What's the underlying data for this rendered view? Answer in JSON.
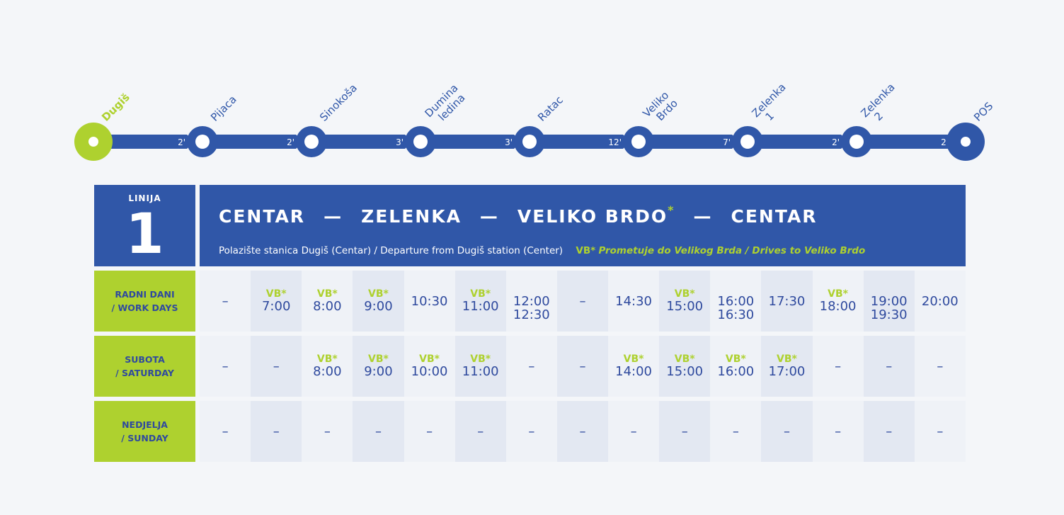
{
  "stops": [
    {
      "name": "Dugiš",
      "first": true
    },
    {
      "name": "Pijaca"
    },
    {
      "name": "Sinokoša"
    },
    {
      "name": "Dumina ledina"
    },
    {
      "name": "Ratac"
    },
    {
      "name": "Veliko Brdo"
    },
    {
      "name": "Zelenka 1"
    },
    {
      "name": "Zelenka 2"
    },
    {
      "name": "POS"
    }
  ],
  "segment_times": [
    "2'",
    "2'",
    "3'",
    "3'",
    "12'",
    "7'",
    "2'",
    "2'"
  ],
  "colors": {
    "blue": "#3057a8",
    "green": "#aed12f",
    "background": "#f4f6f9",
    "cell_light": "#eff2f7",
    "cell_dark": "#e3e8f2"
  },
  "line": {
    "label": "LINIJA",
    "number": "1"
  },
  "route": {
    "part1": "CENTAR",
    "part2": "ZELENKA",
    "part3": "VELIKO BRDO",
    "asterisk": "*",
    "part4": "CENTAR",
    "dash": "—",
    "departure": "Polazište stanica Dugiš (Centar) / Departure from Dugiš station (Center)",
    "vb_mark": "VB*",
    "vb_note": "Prometuje do Velikog Brda / Drives to Veliko Brdo"
  },
  "rows": [
    {
      "label1": "RADNI DANI",
      "label2": "/ WORK DAYS",
      "cells": [
        {
          "t": "–"
        },
        {
          "vb": "VB*",
          "t": "7:00"
        },
        {
          "vb": "VB*",
          "t": "8:00"
        },
        {
          "vb": "VB*",
          "t": "9:00"
        },
        {
          "t": "10:30"
        },
        {
          "vb": "VB*",
          "t": "11:00"
        },
        {
          "t": "12:00",
          "t2": "12:30"
        },
        {
          "t": "–"
        },
        {
          "t": "14:30"
        },
        {
          "vb": "VB*",
          "t": "15:00"
        },
        {
          "t": "16:00",
          "t2": "16:30"
        },
        {
          "t": "17:30"
        },
        {
          "vb": "VB*",
          "t": "18:00"
        },
        {
          "t": "19:00",
          "t2": "19:30"
        },
        {
          "t": "20:00"
        }
      ]
    },
    {
      "label1": "SUBOTA",
      "label2": "/ SATURDAY",
      "cells": [
        {
          "t": "–"
        },
        {
          "t": "–"
        },
        {
          "vb": "VB*",
          "t": "8:00"
        },
        {
          "vb": "VB*",
          "t": "9:00"
        },
        {
          "vb": "VB*",
          "t": "10:00"
        },
        {
          "vb": "VB*",
          "t": "11:00"
        },
        {
          "t": "–"
        },
        {
          "t": "–"
        },
        {
          "vb": "VB*",
          "t": "14:00"
        },
        {
          "vb": "VB*",
          "t": "15:00"
        },
        {
          "vb": "VB*",
          "t": "16:00"
        },
        {
          "vb": "VB*",
          "t": "17:00"
        },
        {
          "t": "–"
        },
        {
          "t": "–"
        },
        {
          "t": "–"
        }
      ]
    },
    {
      "label1": "NEDJELJA",
      "label2": "/ SUNDAY",
      "cells": [
        {
          "t": "–"
        },
        {
          "t": "–"
        },
        {
          "t": "–"
        },
        {
          "t": "–"
        },
        {
          "t": "–"
        },
        {
          "t": "–"
        },
        {
          "t": "–"
        },
        {
          "t": "–"
        },
        {
          "t": "–"
        },
        {
          "t": "–"
        },
        {
          "t": "–"
        },
        {
          "t": "–"
        },
        {
          "t": "–"
        },
        {
          "t": "–"
        },
        {
          "t": "–"
        }
      ]
    }
  ]
}
